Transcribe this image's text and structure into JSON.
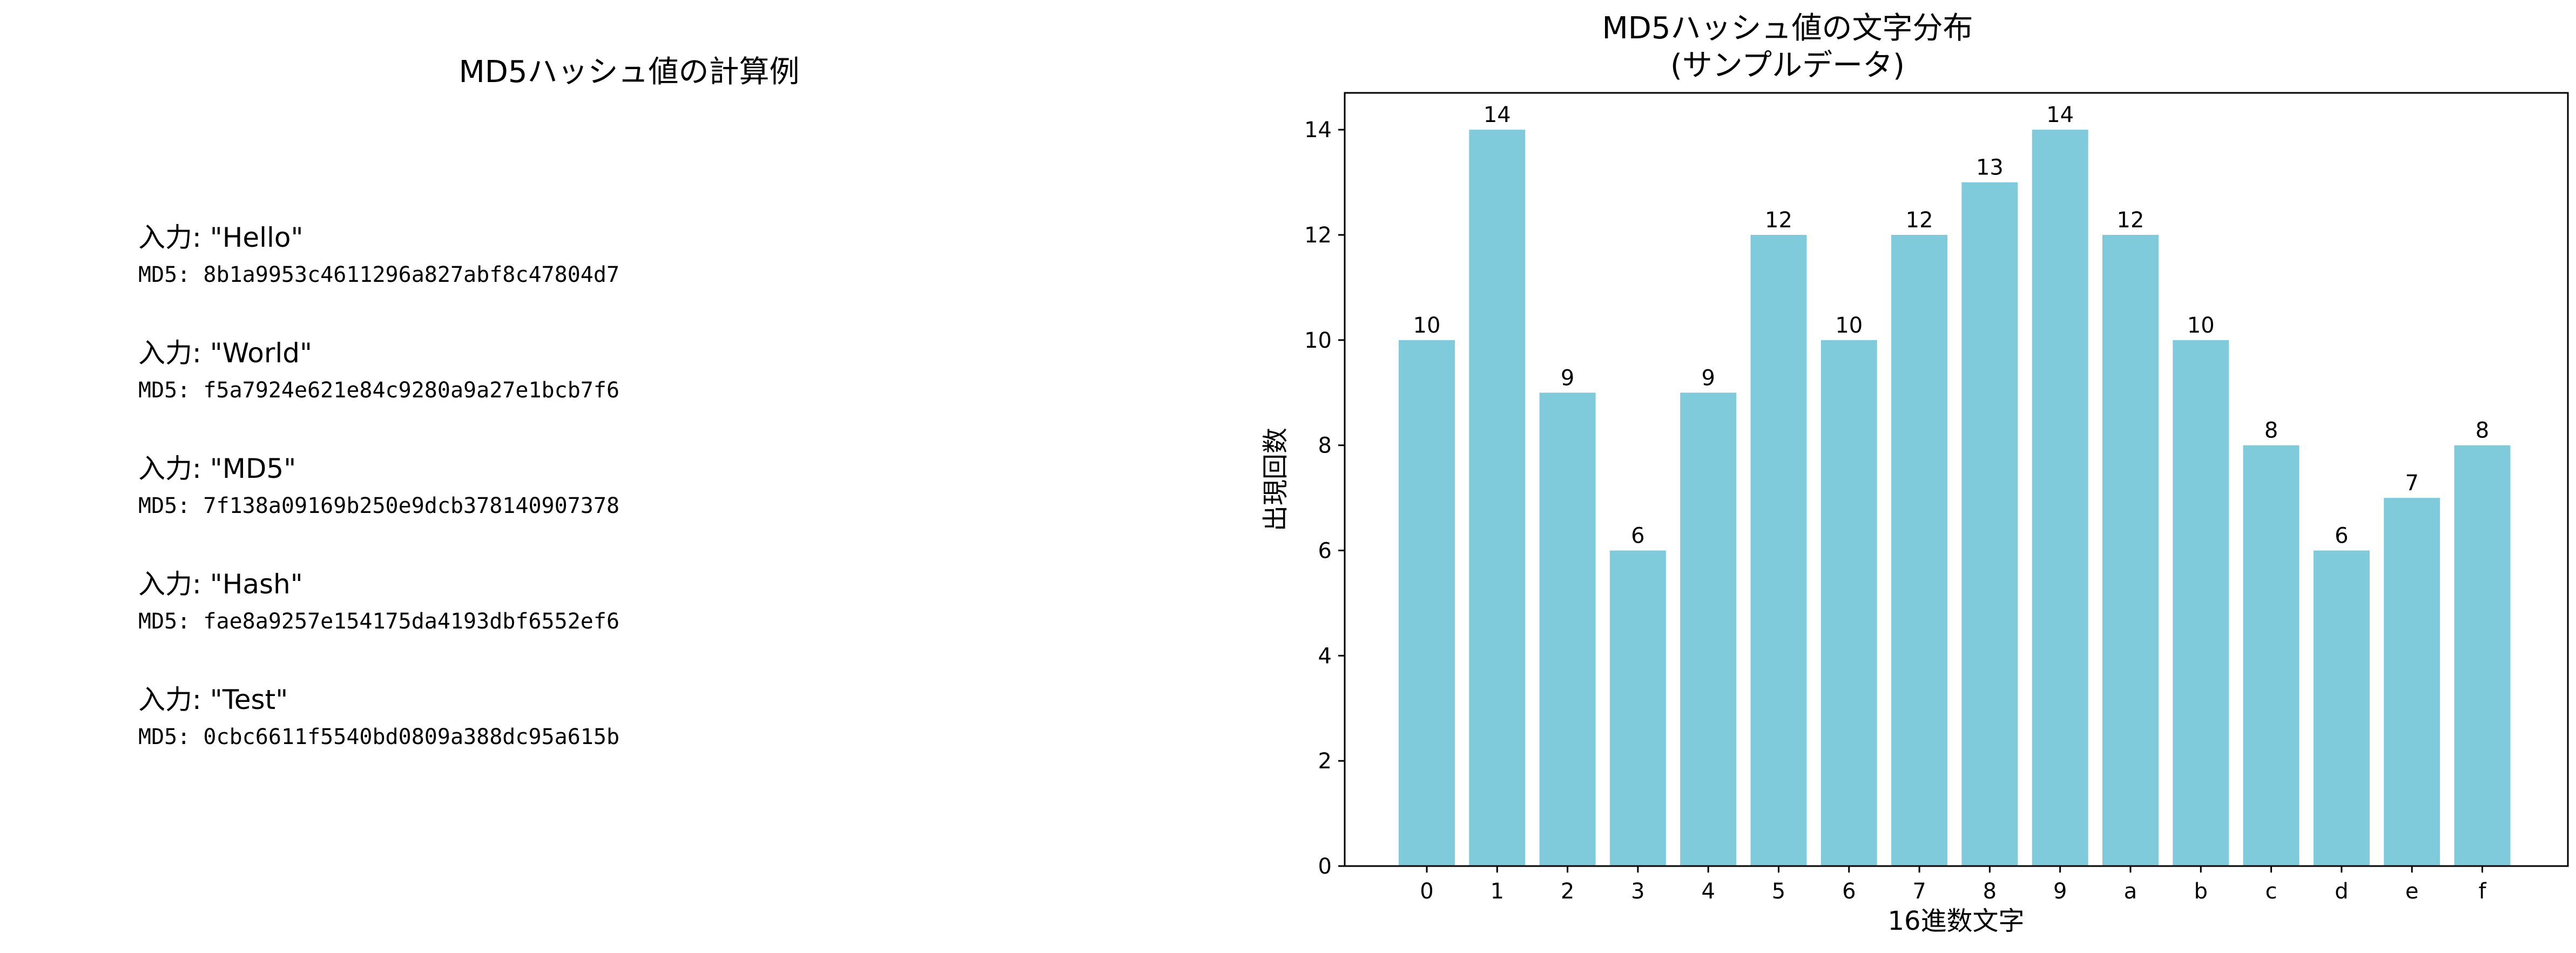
{
  "left_panel": {
    "title": "MD5ハッシュ値の計算例",
    "examples": [
      {
        "input": "入力: \"Hello\"",
        "hash": "MD5: 8b1a9953c4611296a827abf8c47804d7"
      },
      {
        "input": "入力: \"World\"",
        "hash": "MD5: f5a7924e621e84c9280a9a27e1bcb7f6"
      },
      {
        "input": "入力: \"MD5\"",
        "hash": "MD5: 7f138a09169b250e9dcb378140907378"
      },
      {
        "input": "入力: \"Hash\"",
        "hash": "MD5: fae8a9257e154175da4193dbf6552ef6"
      },
      {
        "input": "入力: \"Test\"",
        "hash": "MD5: 0cbc6611f5540bd0809a388dc95a615b"
      }
    ]
  },
  "chart_data": {
    "type": "bar",
    "title_lines": [
      "MD5ハッシュ値の文字分布",
      "(サンプルデータ)"
    ],
    "xlabel": "16進数文字",
    "ylabel": "出現回数",
    "categories": [
      "0",
      "1",
      "2",
      "3",
      "4",
      "5",
      "6",
      "7",
      "8",
      "9",
      "a",
      "b",
      "c",
      "d",
      "e",
      "f"
    ],
    "values": [
      10,
      14,
      9,
      6,
      9,
      12,
      10,
      12,
      13,
      14,
      12,
      10,
      8,
      6,
      7,
      8
    ],
    "ylim": [
      0,
      14.7
    ],
    "yticks": [
      0,
      2,
      4,
      6,
      8,
      10,
      12,
      14
    ],
    "bar_color": "#7fcbdc",
    "data_labels": true,
    "grid": false,
    "legend": "none"
  }
}
